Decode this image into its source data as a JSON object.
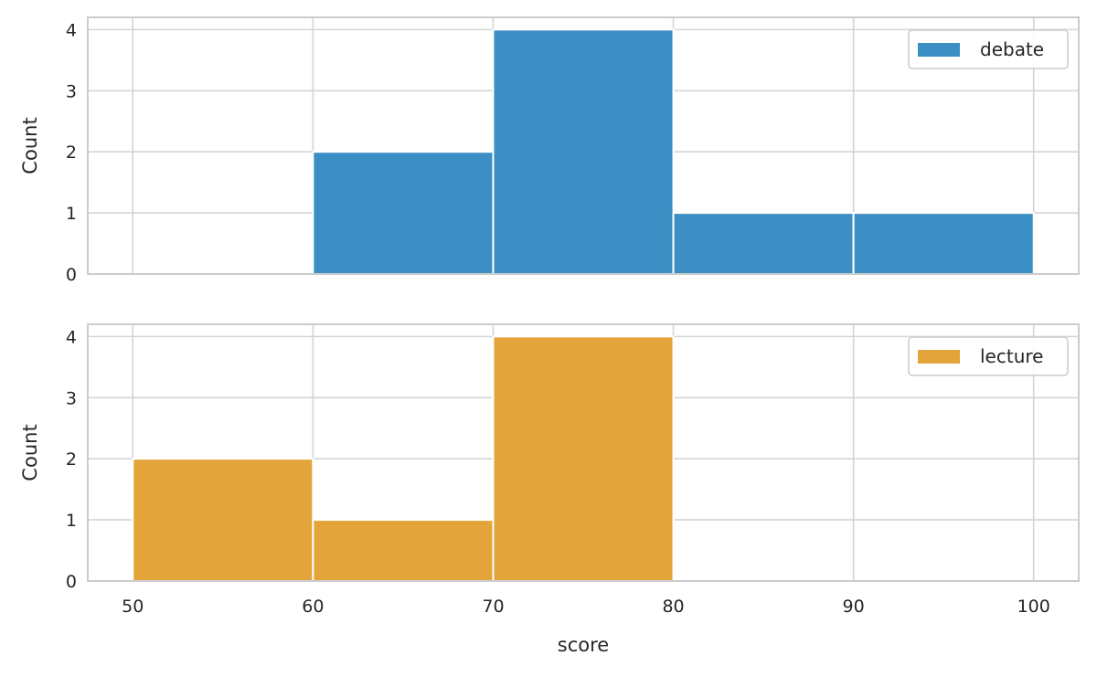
{
  "chart_data": {
    "type": "bar",
    "subtype": "histogram",
    "x_label": "score",
    "x_ticks": [
      "50",
      "60",
      "70",
      "80",
      "90",
      "100"
    ],
    "x_range": [
      47.5,
      102.5
    ],
    "bin_edges": [
      50,
      60,
      70,
      80,
      90,
      100
    ],
    "grid": true,
    "panels": [
      {
        "name": "debate",
        "y_label": "Count",
        "y_ticks": [
          "0",
          "1",
          "2",
          "3",
          "4"
        ],
        "y_range": [
          0,
          4.2
        ],
        "counts": [
          0,
          2,
          4,
          1,
          1
        ],
        "color": "#3B8FC4",
        "legend": "debate",
        "legend_position": "upper right"
      },
      {
        "name": "lecture",
        "y_label": "Count",
        "y_ticks": [
          "0",
          "1",
          "2",
          "3",
          "4"
        ],
        "y_range": [
          0,
          4.2
        ],
        "counts": [
          2,
          1,
          4,
          0,
          0
        ],
        "color": "#E3A43A",
        "legend": "lecture",
        "legend_position": "upper right"
      }
    ]
  }
}
